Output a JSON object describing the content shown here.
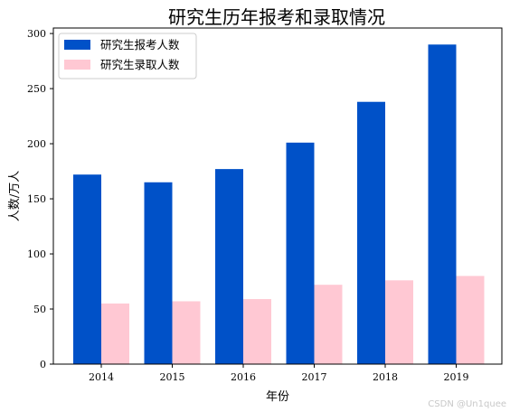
{
  "chart_data": {
    "type": "bar",
    "title": "研究生历年报考和录取情况",
    "xlabel": "年份",
    "ylabel": "人数/万人",
    "categories": [
      "2014",
      "2015",
      "2016",
      "2017",
      "2018",
      "2019"
    ],
    "series": [
      {
        "name": "研究生报考人数",
        "color": "#0051c8",
        "values": [
          172,
          165,
          177,
          201,
          238,
          290
        ]
      },
      {
        "name": "研究生录取人数",
        "color": "#ffc8d3",
        "values": [
          55,
          57,
          59,
          72,
          76,
          80
        ]
      }
    ],
    "ylim": [
      0,
      305
    ],
    "yticks": [
      0,
      50,
      100,
      150,
      200,
      250,
      300
    ],
    "grid": false,
    "legend_position": "top-left"
  },
  "watermark": "CSDN @Un1quee"
}
